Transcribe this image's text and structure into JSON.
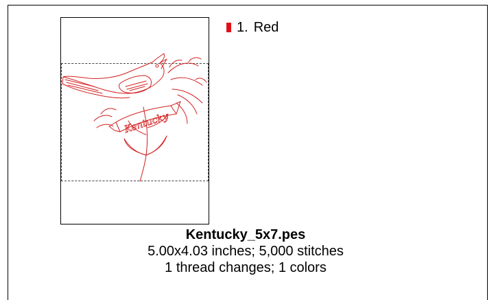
{
  "colors": [
    {
      "index": "1.",
      "name": "Red",
      "swatch_color": "#e0101a"
    }
  ],
  "design": {
    "filename": "Kentucky_5x7.pes",
    "dimensions_line": "5.00x4.03 inches; 5,000 stitches",
    "changes_line": "1 thread changes; 1 colors",
    "artwork_text": "Kentucky",
    "stitch_color": "#d42020"
  }
}
